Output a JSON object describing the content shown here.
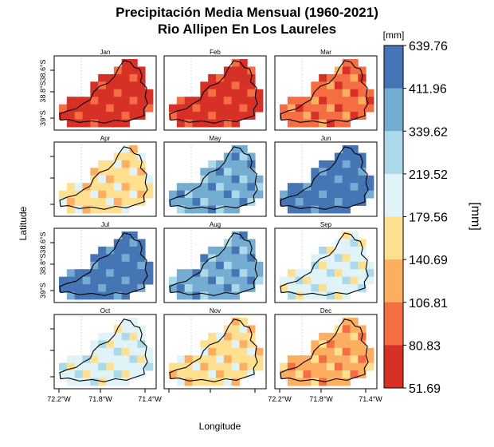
{
  "title_line1": "Precipitación Media Mensual (1960-2021)",
  "title_line2": "Rio Allipen En Los Laureles",
  "chart_data": {
    "type": "heatmap",
    "xlabel": "Longitude",
    "ylabel": "Latitude",
    "x_ticks": [
      "72.2°W",
      "71.8°W",
      "71.4°W"
    ],
    "y_ticks": [
      "38.6°S",
      "38.8°S",
      "39°S"
    ],
    "legend_unit": "[mm]",
    "legend_title": "[mm]",
    "legend_breaks": [
      "639.76",
      "411.96",
      "339.62",
      "219.52",
      "179.56",
      "140.69",
      "106.81",
      "80.83",
      "51.69"
    ],
    "legend_colors": [
      "#4575b4",
      "#74add1",
      "#abd9e9",
      "#e0f3f8",
      "#fee090",
      "#fdae61",
      "#f46d43",
      "#d73027"
    ],
    "months": [
      "Jan",
      "Feb",
      "Mar",
      "Apr",
      "May",
      "Jun",
      "Jul",
      "Aug",
      "Sep",
      "Oct",
      "Nov",
      "Dec"
    ],
    "month_class": {
      "Jan": 7,
      "Feb": 7,
      "Mar": 6,
      "Apr": 4,
      "May": 1,
      "Jun": 0,
      "Jul": 0,
      "Aug": 1,
      "Sep": 3,
      "Oct": 3,
      "Nov": 4,
      "Dec": 5
    }
  }
}
